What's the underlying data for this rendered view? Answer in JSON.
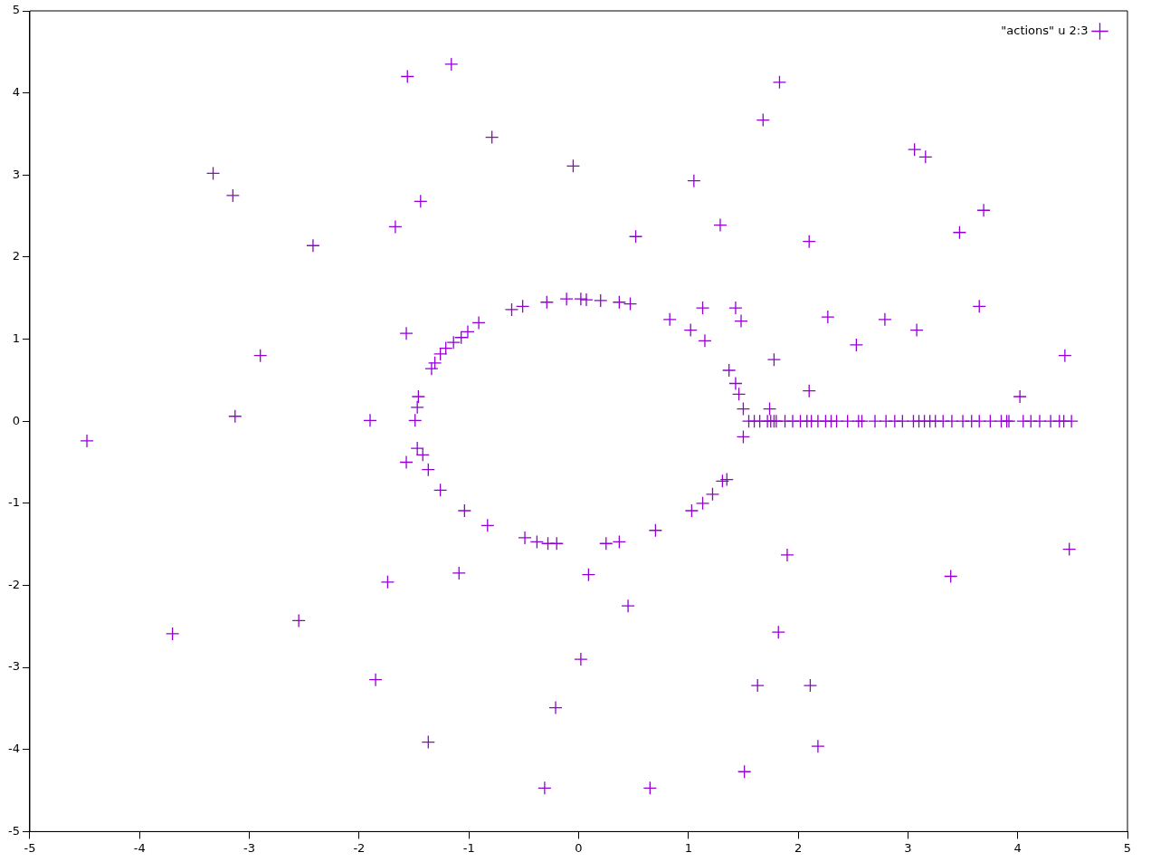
{
  "chart_data": {
    "type": "scatter",
    "marker": "cross",
    "legend": "top right",
    "grid": false,
    "xlim": [
      -5,
      5
    ],
    "xticks": [
      -5,
      -4,
      -3,
      -2,
      -1,
      0,
      1,
      2,
      3,
      4,
      5
    ],
    "ylim": [
      -5,
      5
    ],
    "yticks": [
      -5,
      -4,
      -3,
      -2,
      -1,
      0,
      1,
      2,
      3,
      4,
      5
    ],
    "series": [
      {
        "name": "\"actions\" u 2:3",
        "color": "#9400d3",
        "x": [
          -1.56,
          -1.16,
          1.83,
          -0.79,
          -3.33,
          -3.15,
          -0.05,
          -1.44,
          -1.67,
          -2.42,
          1.68,
          1.05,
          1.29,
          0.52,
          2.1,
          3.06,
          3.16,
          3.69,
          3.47,
          3.65,
          4.43,
          4.02,
          2.27,
          2.79,
          2.53,
          3.08,
          2.1,
          1.78,
          1.74,
          -2.9,
          -3.13,
          -4.48,
          -1.9,
          -1.57,
          -1.57,
          -1.26,
          -1.04,
          -0.83,
          -1.09,
          -1.74,
          -2.55,
          -3.7,
          -1.85,
          -1.37,
          -0.21,
          0.02,
          0.09,
          0.45,
          0.7,
          -0.31,
          0.65,
          1.51,
          2.18,
          1.63,
          2.11,
          1.82,
          1.9,
          3.39,
          4.47,
          -0.11,
          0.02,
          0.07,
          0.2,
          0.37,
          0.47,
          -0.29,
          -0.51,
          -0.61,
          -0.91,
          -1.01,
          -1.07,
          -1.14,
          -1.21,
          -1.26,
          -1.31,
          -1.34,
          -1.46,
          -1.47,
          -1.49,
          -1.47,
          -1.42,
          -1.37,
          -0.49,
          -0.38,
          -0.28,
          -0.2,
          0.25,
          0.37,
          1.03,
          1.13,
          1.22,
          1.31,
          1.35,
          0.83,
          1.02,
          1.13,
          1.15,
          1.37,
          1.43,
          1.48,
          1.43,
          1.46,
          1.5,
          1.5,
          1.55,
          1.6,
          1.65,
          1.72,
          1.75,
          1.78,
          1.8,
          1.88,
          1.95,
          2.02,
          2.08,
          2.12,
          2.18,
          2.25,
          2.3,
          2.35,
          2.45,
          2.55,
          2.58,
          2.7,
          2.8,
          2.88,
          2.95,
          3.05,
          3.1,
          3.15,
          3.2,
          3.25,
          3.32,
          3.4,
          3.5,
          3.58,
          3.65,
          3.75,
          3.85,
          3.9,
          3.92,
          4.05,
          4.12,
          4.2,
          4.3,
          4.38,
          4.42,
          4.49
        ],
        "values": [
          4.2,
          4.35,
          4.13,
          3.46,
          3.02,
          2.75,
          3.11,
          2.68,
          2.37,
          2.14,
          3.67,
          2.93,
          2.39,
          2.25,
          2.19,
          3.31,
          3.22,
          2.57,
          2.3,
          1.4,
          0.8,
          0.3,
          1.27,
          1.24,
          0.93,
          1.11,
          0.37,
          0.75,
          0.15,
          0.8,
          0.06,
          -0.24,
          0.01,
          1.07,
          -0.5,
          -0.84,
          -1.09,
          -1.27,
          -1.85,
          -1.96,
          -2.43,
          -2.59,
          -3.15,
          -3.91,
          -3.49,
          -2.9,
          -1.87,
          -2.25,
          -1.33,
          -4.47,
          -4.47,
          -4.27,
          -3.96,
          -3.22,
          -3.22,
          -2.57,
          -1.63,
          -1.89,
          -1.56,
          1.49,
          1.49,
          1.48,
          1.47,
          1.45,
          1.43,
          1.45,
          1.4,
          1.36,
          1.2,
          1.09,
          1.02,
          0.96,
          0.89,
          0.82,
          0.71,
          0.64,
          0.3,
          0.17,
          0.01,
          -0.33,
          -0.41,
          -0.59,
          -1.42,
          -1.47,
          -1.49,
          -1.49,
          -1.49,
          -1.47,
          -1.09,
          -1.0,
          -0.89,
          -0.73,
          -0.71,
          1.24,
          1.11,
          1.38,
          0.98,
          0.62,
          1.38,
          1.22,
          0.46,
          0.33,
          0.15,
          -0.19,
          0,
          0,
          0,
          0,
          0,
          0,
          0,
          0,
          0,
          0,
          0,
          0,
          0,
          0,
          0,
          0,
          0,
          0,
          0,
          0,
          0,
          0,
          0,
          0,
          0,
          0,
          0,
          0,
          0,
          0,
          0,
          0,
          0,
          0,
          0,
          0,
          0,
          0,
          0,
          0,
          0,
          0,
          0,
          0
        ]
      }
    ]
  }
}
